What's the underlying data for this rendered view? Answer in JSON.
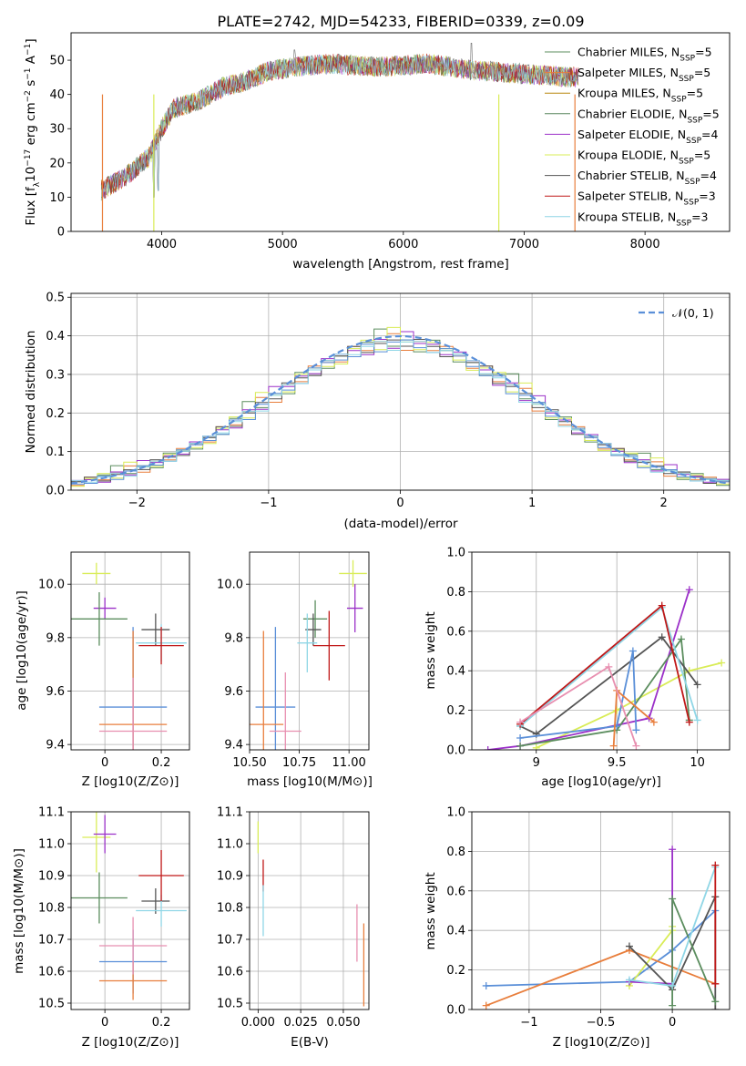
{
  "chart_data": [
    {
      "id": "spectrum",
      "type": "line",
      "title": "PLATE=2742, MJD=54233, FIBERID=0339, z=0.09",
      "xlabel": "wavelength [Angstrom, rest frame]",
      "ylabel": "Flux [f_λ 10^-17 erg cm^-2 s^-1 A^-1]",
      "xlim": [
        3250,
        8700
      ],
      "ylim": [
        0,
        58
      ],
      "xticks": [
        4000,
        5000,
        6000,
        7000,
        8000
      ],
      "yticks": [
        0,
        10,
        20,
        30,
        40,
        50
      ],
      "legend_position": "upper right",
      "continuum": {
        "x": [
          3500,
          3700,
          3900,
          4000,
          4100,
          4300,
          4500,
          4700,
          4900,
          5100,
          5400,
          5800,
          6200,
          6600,
          7000,
          7400,
          7450
        ],
        "y": [
          12,
          16,
          22,
          30,
          36,
          38,
          42,
          44,
          47,
          48,
          49,
          48,
          49,
          47,
          46,
          45,
          45
        ]
      },
      "features": [
        {
          "x": 3934,
          "drop_to": 10
        },
        {
          "x": 3969,
          "drop_to": 12
        },
        {
          "x": 6563,
          "spike_to": 55
        },
        {
          "x": 5100,
          "spike_to": 53
        }
      ],
      "series": [
        {
          "name": "Chabrier MILES",
          "nssp": "5",
          "color": "#5b8d5e"
        },
        {
          "name": "Salpeter MILES",
          "nssp": "5",
          "color": "#e87e3c"
        },
        {
          "name": "Kroupa MILES",
          "nssp": "5",
          "color": "#b8860b"
        },
        {
          "name": "Chabrier ELODIE",
          "nssp": "5",
          "color": "#56845a"
        },
        {
          "name": "Salpeter ELODIE",
          "nssp": "4",
          "color": "#9b30c8"
        },
        {
          "name": "Kroupa ELODIE",
          "nssp": "5",
          "color": "#d9ec57"
        },
        {
          "name": "Chabrier STELIB",
          "nssp": "4",
          "color": "#555555"
        },
        {
          "name": "Salpeter STELIB",
          "nssp": "3",
          "color": "#c01818"
        },
        {
          "name": "Kroupa STELIB",
          "nssp": "3",
          "color": "#8fd6e6"
        }
      ]
    },
    {
      "id": "residuals",
      "type": "line",
      "xlabel": "(data-model)/error",
      "ylabel": "Normed distribution",
      "xlim": [
        -2.5,
        2.5
      ],
      "ylim": [
        0,
        0.51
      ],
      "xticks": [
        -2,
        -1,
        0,
        1,
        2
      ],
      "yticks": [
        0.0,
        0.1,
        0.2,
        0.3,
        0.4,
        0.5
      ],
      "reference": {
        "name": "𝒩(0, 1)",
        "color": "#5a8fd8",
        "style": "dashed"
      },
      "histograms": [
        {
          "color": "#5b8d5e",
          "offsets": [
            0.01,
            -0.02,
            0.03,
            0.08,
            -0.01,
            0.02,
            -0.03,
            0.04,
            0.01,
            -0.02
          ]
        },
        {
          "color": "#e87e3c",
          "offsets": [
            -0.02,
            0.03,
            -0.01,
            0.02,
            0.05,
            -0.03,
            0.02,
            -0.01,
            0.03,
            0.01
          ]
        },
        {
          "color": "#9b30c8",
          "offsets": [
            0.02,
            0.01,
            -0.03,
            0.03,
            -0.02,
            0.06,
            0.01,
            0.02,
            -0.01,
            0.03
          ]
        },
        {
          "color": "#d9ec57",
          "offsets": [
            -0.03,
            0.02,
            0.04,
            -0.02,
            0.08,
            0.01,
            -0.02,
            0.03,
            0.02,
            -0.01
          ]
        },
        {
          "color": "#555555",
          "offsets": [
            0.01,
            0.03,
            -0.02,
            0.01,
            0.02,
            -0.01,
            0.03,
            0.01,
            -0.02,
            0.02
          ]
        },
        {
          "color": "#5a8fd8",
          "offsets": [
            -0.01,
            -0.02,
            0.02,
            -0.03,
            0.01,
            0.02,
            -0.01,
            -0.02,
            0.02,
            0.01
          ]
        },
        {
          "color": "#8fd6e6",
          "offsets": [
            0.02,
            -0.01,
            0.01,
            0.02,
            -0.03,
            0.01,
            0.02,
            -0.02,
            0.01,
            0.02
          ]
        }
      ]
    },
    {
      "id": "age-vs-Z",
      "type": "scatter",
      "xlabel": "Z [log10(Z/Z⊙)]",
      "ylabel": "age [log10(age/yr)]",
      "xlim": [
        -0.12,
        0.3
      ],
      "ylim": [
        9.38,
        10.12
      ],
      "xticks": [
        0.0,
        0.2
      ],
      "yticks": [
        9.4,
        9.6,
        9.8,
        10.0
      ],
      "points": [
        {
          "color": "#d9ec57",
          "x": -0.03,
          "y": 10.04,
          "xerr": 0.05,
          "yerr": 0.04
        },
        {
          "color": "#9b30c8",
          "x": 0.0,
          "y": 9.91,
          "xerr": 0.04,
          "yerr": 0.04
        },
        {
          "color": "#5b8d5e",
          "x": -0.02,
          "y": 9.87,
          "xerr": 0.1,
          "yerr": 0.1
        },
        {
          "color": "#555555",
          "x": 0.18,
          "y": 9.83,
          "xerr": 0.05,
          "yerr": 0.06
        },
        {
          "color": "#8fd6e6",
          "x": 0.2,
          "y": 9.78,
          "xerr": 0.09,
          "yerr": 0.07
        },
        {
          "color": "#c01818",
          "x": 0.2,
          "y": 9.77,
          "xerr": 0.08,
          "yerr": 0.07
        },
        {
          "color": "#5a8fd8",
          "x": 0.1,
          "y": 9.54,
          "xerr": 0.12,
          "yerr": 0.3
        },
        {
          "color": "#e87e3c",
          "x": 0.1,
          "y": 9.475,
          "xerr": 0.12,
          "yerr": 0.35
        },
        {
          "color": "#e88fb0",
          "x": 0.1,
          "y": 9.45,
          "xerr": 0.12,
          "yerr": 0.2
        }
      ]
    },
    {
      "id": "age-vs-mass",
      "type": "scatter",
      "xlabel": "mass [log10(M/M⊙)]",
      "xlim": [
        10.5,
        11.1
      ],
      "ylim": [
        9.38,
        10.12
      ],
      "xticks": [
        10.5,
        10.75,
        11.0
      ],
      "xticklabels": [
        "10.50",
        "10.75",
        "11.00"
      ],
      "yticks": [
        9.4,
        9.6,
        9.8,
        10.0
      ],
      "points": [
        {
          "color": "#d9ec57",
          "x": 11.02,
          "y": 10.04,
          "xerr": 0.07,
          "yerr": 0.05
        },
        {
          "color": "#9b30c8",
          "x": 11.03,
          "y": 9.91,
          "xerr": 0.04,
          "yerr": 0.09
        },
        {
          "color": "#5b8d5e",
          "x": 10.83,
          "y": 9.87,
          "xerr": 0.06,
          "yerr": 0.07
        },
        {
          "color": "#555555",
          "x": 10.82,
          "y": 9.83,
          "xerr": 0.04,
          "yerr": 0.06
        },
        {
          "color": "#8fd6e6",
          "x": 10.79,
          "y": 9.78,
          "xerr": 0.05,
          "yerr": 0.11
        },
        {
          "color": "#c01818",
          "x": 10.9,
          "y": 9.77,
          "xerr": 0.08,
          "yerr": 0.13
        },
        {
          "color": "#5a8fd8",
          "x": 10.63,
          "y": 9.54,
          "xerr": 0.1,
          "yerr": 0.3
        },
        {
          "color": "#e87e3c",
          "x": 10.57,
          "y": 9.475,
          "xerr": 0.1,
          "yerr": 0.35
        },
        {
          "color": "#e88fb0",
          "x": 10.68,
          "y": 9.45,
          "xerr": 0.08,
          "yerr": 0.22
        }
      ]
    },
    {
      "id": "weights-vs-age",
      "type": "line",
      "xlabel": "age [log10(age/yr)]",
      "ylabel": "mass weight",
      "xlim": [
        8.6,
        10.2
      ],
      "ylim": [
        0,
        1.0
      ],
      "xticks": [
        9.0,
        9.5,
        10.0
      ],
      "yticks": [
        0.0,
        0.2,
        0.4,
        0.6,
        0.8,
        1.0
      ],
      "series": [
        {
          "color": "#d9ec57",
          "x": [
            9.0,
            9.5,
            9.95,
            10.15
          ],
          "y": [
            0.01,
            0.2,
            0.4,
            0.44
          ]
        },
        {
          "color": "#9b30c8",
          "x": [
            8.7,
            8.9,
            9.7,
            9.95
          ],
          "y": [
            0.0,
            0.02,
            0.16,
            0.81
          ]
        },
        {
          "color": "#5b8d5e",
          "x": [
            8.9,
            9.5,
            9.9,
            9.95
          ],
          "y": [
            0.02,
            0.1,
            0.56,
            0.15
          ]
        },
        {
          "color": "#555555",
          "x": [
            8.9,
            9.0,
            9.78,
            10.0
          ],
          "y": [
            0.12,
            0.08,
            0.57,
            0.33
          ]
        },
        {
          "color": "#8fd6e6",
          "x": [
            8.9,
            9.78,
            10.0
          ],
          "y": [
            0.12,
            0.72,
            0.15
          ]
        },
        {
          "color": "#c01818",
          "x": [
            8.9,
            9.78,
            9.95
          ],
          "y": [
            0.13,
            0.73,
            0.14
          ]
        },
        {
          "color": "#5a8fd8",
          "x": [
            8.9,
            9.5,
            9.6,
            9.62
          ],
          "y": [
            0.06,
            0.12,
            0.5,
            0.1
          ]
        },
        {
          "color": "#e87e3c",
          "x": [
            9.48,
            9.5,
            9.73
          ],
          "y": [
            0.02,
            0.3,
            0.14
          ]
        },
        {
          "color": "#e88fb0",
          "x": [
            8.9,
            9.45,
            9.62
          ],
          "y": [
            0.14,
            0.42,
            0.02
          ]
        }
      ]
    },
    {
      "id": "mass-vs-Z",
      "type": "scatter",
      "xlabel": "Z [log10(Z/Z⊙)]",
      "ylabel": "mass [log10(M/M⊙)]",
      "xlim": [
        -0.12,
        0.3
      ],
      "ylim": [
        10.48,
        11.1
      ],
      "xticks": [
        0.0,
        0.2
      ],
      "yticks": [
        10.5,
        10.6,
        10.7,
        10.8,
        10.9,
        11.0,
        11.1
      ],
      "points": [
        {
          "color": "#d9ec57",
          "x": -0.03,
          "y": 11.02,
          "xerr": 0.05,
          "yerr": 0.11
        },
        {
          "color": "#9b30c8",
          "x": 0.0,
          "y": 11.03,
          "xerr": 0.04,
          "yerr": 0.06
        },
        {
          "color": "#5b8d5e",
          "x": -0.02,
          "y": 10.83,
          "xerr": 0.1,
          "yerr": 0.08
        },
        {
          "color": "#555555",
          "x": 0.18,
          "y": 10.82,
          "xerr": 0.05,
          "yerr": 0.04
        },
        {
          "color": "#8fd6e6",
          "x": 0.2,
          "y": 10.79,
          "xerr": 0.09,
          "yerr": 0.05
        },
        {
          "color": "#c01818",
          "x": 0.2,
          "y": 10.9,
          "xerr": 0.08,
          "yerr": 0.08
        },
        {
          "color": "#5a8fd8",
          "x": 0.1,
          "y": 10.63,
          "xerr": 0.12,
          "yerr": 0.1
        },
        {
          "color": "#e87e3c",
          "x": 0.1,
          "y": 10.57,
          "xerr": 0.12,
          "yerr": 0.06
        },
        {
          "color": "#e88fb0",
          "x": 0.1,
          "y": 10.68,
          "xerr": 0.12,
          "yerr": 0.09
        }
      ]
    },
    {
      "id": "mass-vs-EBV",
      "type": "scatter",
      "xlabel": "E(B-V)",
      "xlim": [
        -0.005,
        0.065
      ],
      "ylim": [
        10.48,
        11.1
      ],
      "xticks": [
        0.0,
        0.025,
        0.05
      ],
      "xticklabels": [
        "0.000",
        "0.025",
        "0.050"
      ],
      "yticks": [
        10.5,
        10.6,
        10.7,
        10.8,
        10.9,
        11.0,
        11.1
      ],
      "points": [
        {
          "color": "#d9ec57",
          "x": 0.0,
          "y": 11.02,
          "xerr": 0,
          "yerr": 0.05
        },
        {
          "color": "#c01818",
          "x": 0.003,
          "y": 10.9,
          "xerr": 0,
          "yerr": 0.05
        },
        {
          "color": "#8fd6e6",
          "x": 0.003,
          "y": 10.79,
          "xerr": 0,
          "yerr": 0.08
        },
        {
          "color": "#e88fb0",
          "x": 0.058,
          "y": 10.72,
          "xerr": 0,
          "yerr": 0.09
        },
        {
          "color": "#e87e3c",
          "x": 0.062,
          "y": 10.62,
          "xerr": 0,
          "yerr": 0.13
        }
      ]
    },
    {
      "id": "weights-vs-Z",
      "type": "line",
      "xlabel": "Z [log10(Z/Z⊙)]",
      "ylabel": "mass weight",
      "xlim": [
        -1.4,
        0.4
      ],
      "ylim": [
        0,
        1.0
      ],
      "xticks": [
        -1.0,
        -0.5,
        0.0
      ],
      "yticks": [
        0.0,
        0.2,
        0.4,
        0.6,
        0.8,
        1.0
      ],
      "series": [
        {
          "color": "#5a8fd8",
          "x": [
            -1.3,
            -0.3,
            0.0,
            0.3
          ],
          "y": [
            0.12,
            0.14,
            0.3,
            0.5
          ]
        },
        {
          "color": "#e87e3c",
          "x": [
            -1.3,
            -0.3,
            0.3
          ],
          "y": [
            0.02,
            0.3,
            0.13
          ]
        },
        {
          "color": "#d9ec57",
          "x": [
            -0.3,
            0.0,
            0.0
          ],
          "y": [
            0.12,
            0.4,
            0.42
          ]
        },
        {
          "color": "#9b30c8",
          "x": [
            -0.3,
            0.0,
            0.0
          ],
          "y": [
            0.14,
            0.13,
            0.81
          ]
        },
        {
          "color": "#555555",
          "x": [
            -0.3,
            0.0,
            0.3,
            0.3
          ],
          "y": [
            0.32,
            0.1,
            0.57,
            0.0
          ]
        },
        {
          "color": "#5b8d5e",
          "x": [
            0.0,
            0.0,
            0.3
          ],
          "y": [
            0.02,
            0.56,
            0.04
          ]
        },
        {
          "color": "#8fd6e6",
          "x": [
            -0.3,
            0.0,
            0.3
          ],
          "y": [
            0.15,
            0.12,
            0.72
          ]
        },
        {
          "color": "#c01818",
          "x": [
            0.3,
            0.3
          ],
          "y": [
            0.13,
            0.73
          ]
        }
      ]
    }
  ]
}
